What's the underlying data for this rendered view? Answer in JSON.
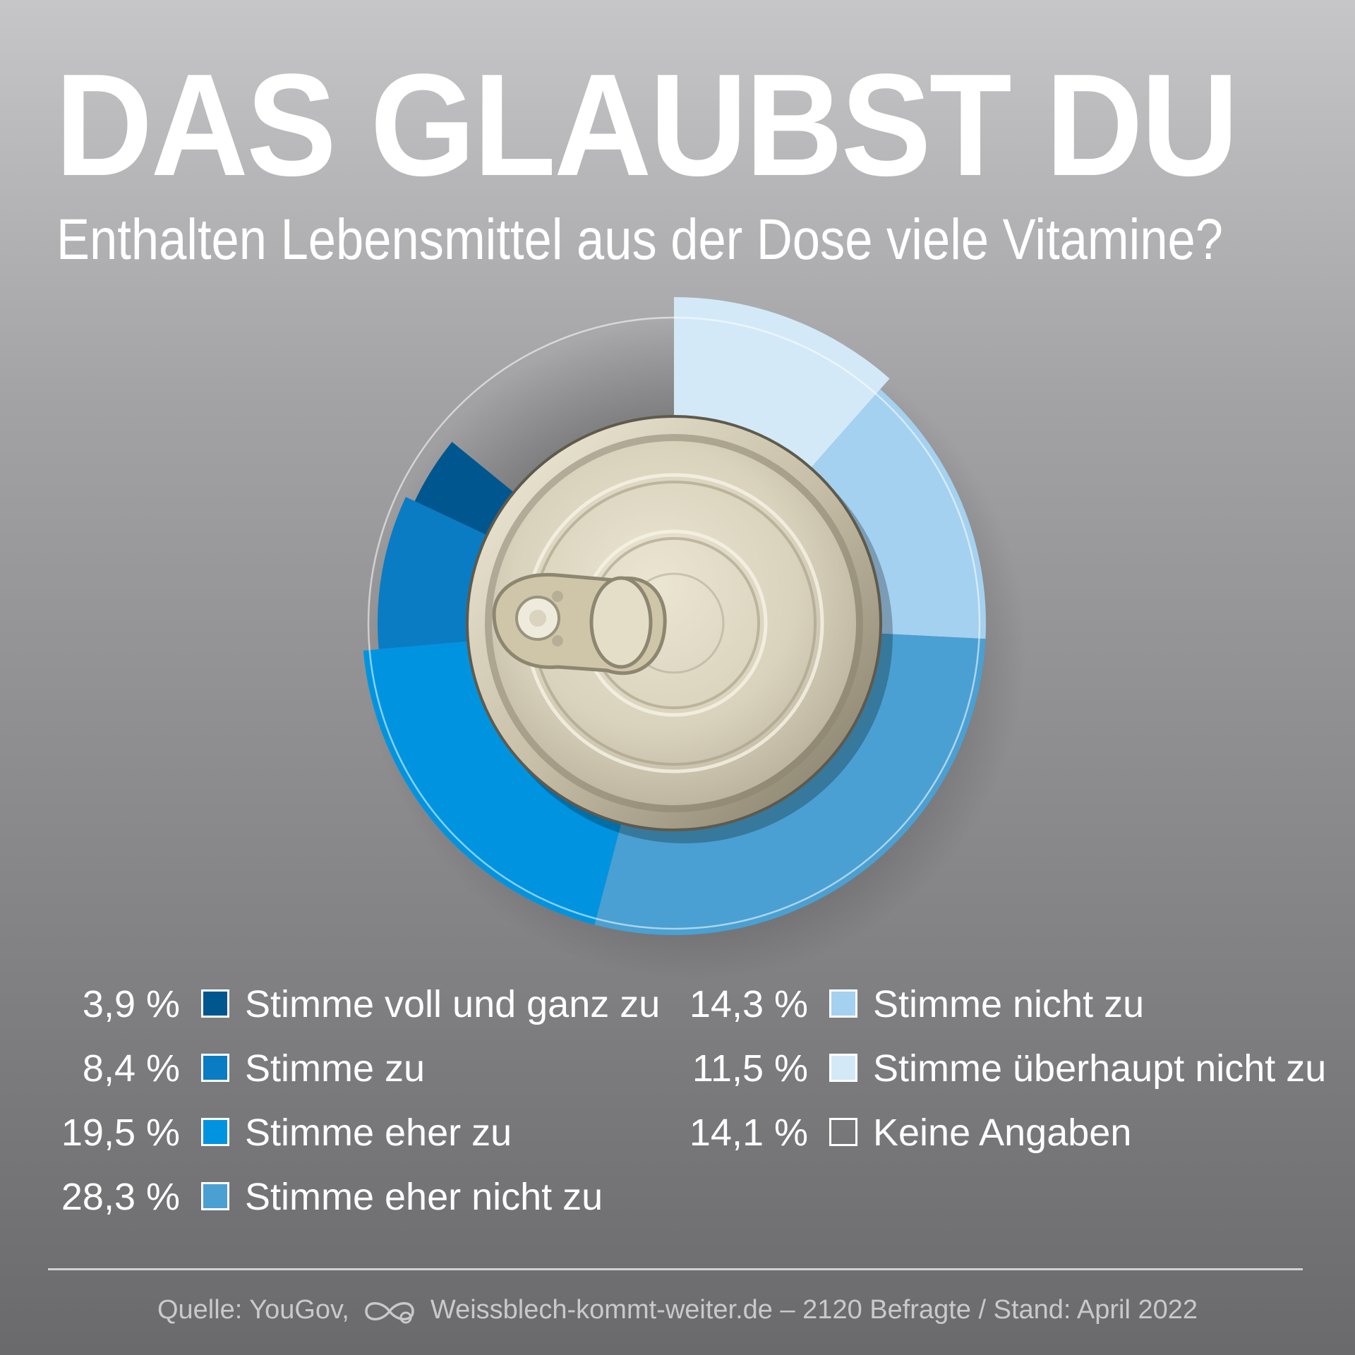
{
  "headline": "DAS GLAUBST DU",
  "subtitle": "Enthalten Lebensmittel aus der Dose viele Vitamine?",
  "chart_data": {
    "type": "pie",
    "title": "DAS GLAUBST DU",
    "subtitle": "Enthalten Lebensmittel aus der Dose viele Vitamine?",
    "unit": "%",
    "series": [
      {
        "label": "Stimme voll und ganz zu",
        "value": 3.9,
        "display": "3,9 %",
        "color": "#00578f"
      },
      {
        "label": "Stimme zu",
        "value": 8.4,
        "display": "8,4 %",
        "color": "#0a7cc4"
      },
      {
        "label": "Stimme eher zu",
        "value": 19.5,
        "display": "19,5 %",
        "color": "#0094e0"
      },
      {
        "label": "Stimme eher nicht zu",
        "value": 28.3,
        "display": "28,3 %",
        "color": "#4aa0d2"
      },
      {
        "label": "Stimme nicht zu",
        "value": 14.3,
        "display": "14,3 %",
        "color": "#a4d1f0"
      },
      {
        "label": "Stimme überhaupt nicht zu",
        "value": 11.5,
        "display": "11,5 %",
        "color": "#d3e9f8"
      },
      {
        "label": "Keine Angaben",
        "value": 14.1,
        "display": "14,1 %",
        "color": "transparent"
      }
    ],
    "slice_order": [
      5,
      4,
      3,
      2,
      1,
      0,
      6
    ],
    "legend_position": "bottom"
  },
  "footer": {
    "source": "Quelle: YouGov,",
    "site": "Weissblech-kommt-weiter.de",
    "details": "– 2120 Befragte / Stand: April 2022",
    "logo_icon": "infinity-can-icon"
  }
}
